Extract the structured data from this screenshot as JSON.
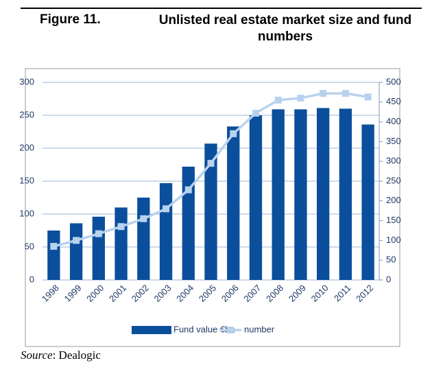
{
  "chart_data": {
    "type": "bar_line",
    "figure_label": "Figure 11.",
    "title": "Unlisted real estate market size and fund numbers",
    "source_label": "Source",
    "source": ": Dealogic",
    "categories": [
      "1998",
      "1999",
      "2000",
      "2001",
      "2002",
      "2003",
      "2004",
      "2005",
      "2006",
      "2007",
      "2008",
      "2009",
      "2010",
      "2011",
      "2012"
    ],
    "series": [
      {
        "name": "Fund value €bn",
        "color": "#0b4f9c",
        "kind": "bar",
        "axis": "y",
        "values": [
          75,
          86,
          96,
          110,
          125,
          147,
          172,
          207,
          233,
          250,
          259,
          259,
          261,
          260,
          236
        ]
      },
      {
        "name": "number",
        "color": "#b8d2ee",
        "kind": "line",
        "axis": "y2",
        "values": [
          85,
          100,
          117,
          135,
          155,
          180,
          228,
          295,
          370,
          422,
          455,
          460,
          472,
          472,
          463
        ]
      }
    ],
    "ylim": [
      0,
      300
    ],
    "yticks": [
      0,
      50,
      100,
      150,
      200,
      250,
      300
    ],
    "y2lim": [
      0,
      500
    ],
    "y2ticks": [
      0,
      50,
      100,
      150,
      200,
      250,
      300,
      350,
      400,
      450,
      500
    ],
    "grid": true
  }
}
